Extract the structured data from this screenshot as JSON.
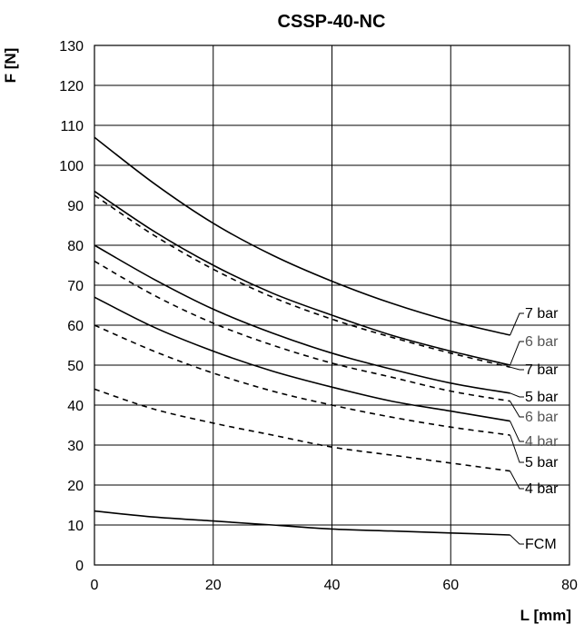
{
  "chart_data": {
    "type": "line",
    "title": "CSSP-40-NC",
    "xlabel": "L [mm]",
    "ylabel": "F [N]",
    "xlim": [
      0,
      80
    ],
    "ylim": [
      0,
      130
    ],
    "xticks": [
      0,
      20,
      40,
      60,
      80
    ],
    "yticks": [
      0,
      10,
      20,
      30,
      40,
      50,
      60,
      70,
      80,
      90,
      100,
      110,
      120,
      130
    ],
    "grid": true,
    "series": [
      {
        "name": "7 bar",
        "style": "solid",
        "label_color": "#000000",
        "x": [
          0,
          10,
          20,
          30,
          40,
          50,
          60,
          70
        ],
        "y": [
          107,
          95.5,
          85.5,
          77.5,
          71,
          65.5,
          61,
          57.5
        ]
      },
      {
        "name": "6 bar",
        "style": "solid",
        "label_color": "#555555",
        "x": [
          0,
          10,
          20,
          30,
          40,
          50,
          60,
          70
        ],
        "y": [
          93.5,
          83.5,
          75,
          68,
          62.5,
          57.5,
          53.5,
          50
        ]
      },
      {
        "name": "7 bar",
        "style": "dashed",
        "label_color": "#000000",
        "x": [
          0,
          10,
          20,
          30,
          40,
          50,
          60,
          70
        ],
        "y": [
          92.5,
          82.5,
          74,
          67,
          61.5,
          57,
          53,
          49.5
        ]
      },
      {
        "name": "5 bar",
        "style": "solid",
        "label_color": "#000000",
        "x": [
          0,
          10,
          20,
          30,
          40,
          50,
          60,
          70
        ],
        "y": [
          80,
          71.5,
          64,
          58,
          53,
          49,
          45.5,
          43
        ]
      },
      {
        "name": "6 bar",
        "style": "dashed",
        "label_color": "#555555",
        "x": [
          0,
          10,
          20,
          30,
          40,
          50,
          60,
          70
        ],
        "y": [
          76,
          67.5,
          60.5,
          55,
          50.5,
          47,
          43.5,
          41
        ]
      },
      {
        "name": "4 bar",
        "style": "solid",
        "label_color": "#555555",
        "x": [
          0,
          10,
          20,
          30,
          40,
          50,
          60,
          70
        ],
        "y": [
          67,
          59.5,
          53.5,
          48.5,
          44.5,
          41,
          38.5,
          36
        ]
      },
      {
        "name": "5 bar",
        "style": "dashed",
        "label_color": "#000000",
        "x": [
          0,
          10,
          20,
          30,
          40,
          50,
          60,
          70
        ],
        "y": [
          60,
          53.5,
          48,
          43.5,
          40,
          37,
          34.5,
          32.5
        ]
      },
      {
        "name": "4 bar",
        "style": "dashed",
        "label_color": "#000000",
        "x": [
          0,
          10,
          20,
          30,
          40,
          50,
          60,
          70
        ],
        "y": [
          44,
          39,
          35.5,
          32.5,
          29.5,
          27.5,
          25.5,
          23.5
        ]
      },
      {
        "name": "FCM",
        "style": "solid",
        "label_color": "#000000",
        "x": [
          0,
          10,
          20,
          30,
          40,
          50,
          60,
          70
        ],
        "y": [
          13.5,
          12,
          11,
          10,
          9,
          8.5,
          8,
          7.5
        ]
      }
    ]
  }
}
